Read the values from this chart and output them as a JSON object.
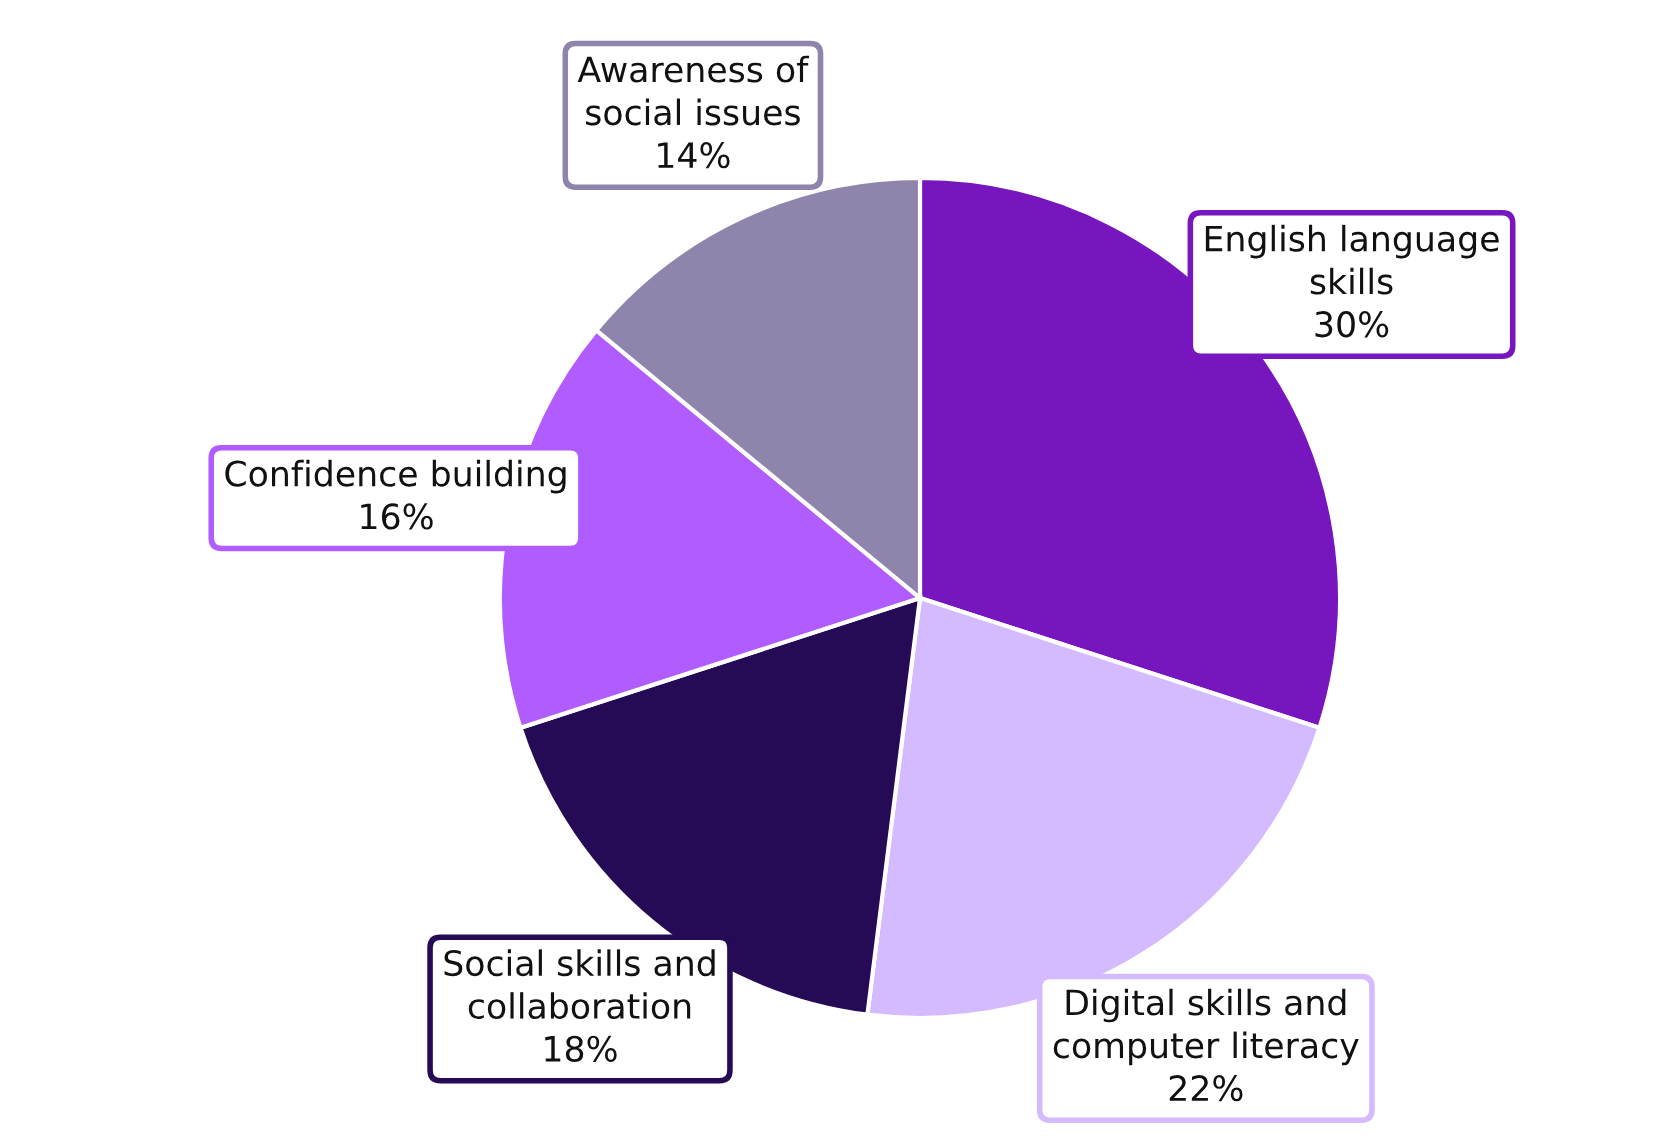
{
  "chart_data": {
    "type": "pie",
    "categories": [
      "English language\nskills",
      "Digital skills and\ncomputer literacy",
      "Social skills and\ncollaboration",
      "Confidence building",
      "Awareness of\nsocial issues"
    ],
    "values": [
      30,
      22,
      18,
      16,
      14
    ],
    "value_labels": [
      "30%",
      "22%",
      "18%",
      "16%",
      "14%"
    ],
    "colors": [
      "#7716bf",
      "#d4bbff",
      "#250a56",
      "#b05cff",
      "#8f84ab"
    ],
    "legend": false
  }
}
